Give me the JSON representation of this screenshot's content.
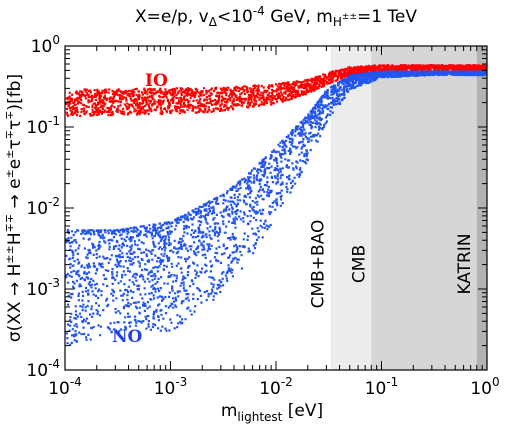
{
  "chart_data": {
    "type": "scatter",
    "title_parts": {
      "prefix": "X=e/p, v",
      "v_sub": "Δ",
      "mid": "<10",
      "exp": "-4",
      "gev": " GeV, m",
      "mass_sub": "H",
      "mass_sub_sup": "±±",
      "suffix": "=1 TeV"
    },
    "xlabel_parts": {
      "main": "m",
      "sub": "lightest",
      "unit": " [eV]"
    },
    "ylabel_parts": {
      "a": "σ(XX → H",
      "s1": "±±",
      "b": "H",
      "s2": "∓∓",
      "c": " → e",
      "s3": "±",
      "d": "e",
      "s4": "±",
      "e": "τ",
      "s5": "∓",
      "f": "τ",
      "s6": "∓",
      "g": ")[fb]"
    },
    "x_scale": "log",
    "y_scale": "log",
    "xlim": [
      0.0001,
      1
    ],
    "ylim": [
      0.0001,
      1
    ],
    "x_ticks": [
      {
        "base": "10",
        "exp": "-4",
        "value": 0.0001
      },
      {
        "base": "10",
        "exp": "-3",
        "value": 0.001
      },
      {
        "base": "10",
        "exp": "-2",
        "value": 0.01
      },
      {
        "base": "10",
        "exp": "-1",
        "value": 0.1
      },
      {
        "base": "10",
        "exp": "0",
        "value": 1
      }
    ],
    "y_ticks": [
      {
        "base": "10",
        "exp": "-4",
        "value": 0.0001
      },
      {
        "base": "10",
        "exp": "-3",
        "value": 0.001
      },
      {
        "base": "10",
        "exp": "-2",
        "value": 0.01
      },
      {
        "base": "10",
        "exp": "-1",
        "value": 0.1
      },
      {
        "base": "10",
        "exp": "0",
        "value": 1
      }
    ],
    "grid": false,
    "series": [
      {
        "name": "IO",
        "color": "#ff0000",
        "x": [
          0.0001,
          0.001,
          0.003,
          0.01,
          0.02,
          0.03,
          0.05,
          0.1,
          0.3,
          1
        ],
        "y_low": [
          0.14,
          0.15,
          0.16,
          0.2,
          0.27,
          0.35,
          0.45,
          0.5,
          0.52,
          0.52
        ],
        "y_high": [
          0.3,
          0.31,
          0.32,
          0.35,
          0.4,
          0.48,
          0.57,
          0.6,
          0.6,
          0.6
        ]
      },
      {
        "name": "NO",
        "color": "#2255ee",
        "x": [
          0.0001,
          0.0003,
          0.001,
          0.003,
          0.005,
          0.01,
          0.02,
          0.03,
          0.05,
          0.1,
          0.3,
          1
        ],
        "y_low": [
          0.0002,
          0.0003,
          0.0003,
          0.0009,
          0.002,
          0.008,
          0.04,
          0.12,
          0.3,
          0.42,
          0.45,
          0.45
        ],
        "y_high": [
          0.0055,
          0.0055,
          0.007,
          0.015,
          0.025,
          0.06,
          0.15,
          0.3,
          0.45,
          0.5,
          0.5,
          0.5
        ]
      }
    ],
    "excluded_regions": [
      {
        "label": "CMB+BAO",
        "x_from": 0.033,
        "x_to": 1,
        "color": "#ececec"
      },
      {
        "label": "CMB",
        "x_from": 0.08,
        "x_to": 1,
        "color": "#d6d6d6"
      },
      {
        "label": "KATRIN",
        "x_from": 0.8,
        "x_to": 1,
        "color": "#b3b3b3"
      }
    ]
  }
}
